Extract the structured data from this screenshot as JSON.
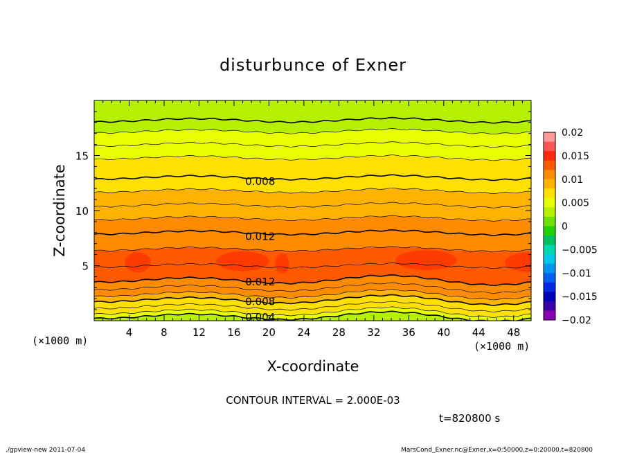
{
  "chart_data": {
    "type": "heatmap",
    "title": "disturbunce of Exner",
    "xlabel": "X-coordinate",
    "ylabel": "Z-coordinate",
    "x_unit": "(×1000 m)",
    "x_unit_right": "(×1000 m)",
    "xlim": [
      0,
      50
    ],
    "ylim": [
      0,
      20
    ],
    "x_ticks": [
      4,
      8,
      12,
      16,
      20,
      24,
      28,
      32,
      36,
      40,
      44,
      48
    ],
    "y_ticks": [
      5,
      10,
      15
    ],
    "contour_interval_label": "CONTOUR INTERVAL = 2.000E-03",
    "time_label": "t=820800 s",
    "contour_labels": [
      {
        "text": "0.008",
        "x": 19,
        "z": 12.8
      },
      {
        "text": "0.012",
        "x": 19,
        "z": 7.8
      },
      {
        "text": "0.012",
        "x": 19,
        "z": 3.8
      },
      {
        "text": "0.008",
        "x": 19,
        "z": 2.0
      },
      {
        "text": "0.004",
        "x": 19,
        "z": 0.6
      }
    ],
    "levels": [
      {
        "z": 19.0,
        "value": 0.004
      },
      {
        "z": 18.2,
        "value": 0.004
      },
      {
        "z": 17.2,
        "value": 0.005
      },
      {
        "z": 16.0,
        "value": 0.006
      },
      {
        "z": 14.8,
        "value": 0.007
      },
      {
        "z": 13.0,
        "value": 0.008
      },
      {
        "z": 11.8,
        "value": 0.009
      },
      {
        "z": 10.5,
        "value": 0.01
      },
      {
        "z": 9.3,
        "value": 0.011
      },
      {
        "z": 8.0,
        "value": 0.012
      },
      {
        "z": 6.5,
        "value": 0.013
      },
      {
        "z": 5.0,
        "value": 0.0135
      },
      {
        "z": 3.7,
        "value": 0.012
      },
      {
        "z": 3.0,
        "value": 0.011
      },
      {
        "z": 2.4,
        "value": 0.01
      },
      {
        "z": 1.9,
        "value": 0.008
      },
      {
        "z": 1.3,
        "value": 0.007
      },
      {
        "z": 0.8,
        "value": 0.005
      },
      {
        "z": 0.4,
        "value": 0.004
      },
      {
        "z": 0.0,
        "value": 0.003
      }
    ],
    "colorbar": {
      "ticks": [
        "0.02",
        "0.015",
        "0.01",
        "0.005",
        "0",
        "−0.005",
        "−0.01",
        "−0.015",
        "−0.02"
      ],
      "colors": [
        "#ff9a9a",
        "#ff5555",
        "#ff2a10",
        "#ff5a00",
        "#ff8c00",
        "#ffb300",
        "#ffe000",
        "#e8ff00",
        "#b4f000",
        "#6ee000",
        "#22d200",
        "#00c060",
        "#00d8b0",
        "#00c8e8",
        "#0096f0",
        "#0060f0",
        "#0028e0",
        "#0000b8",
        "#3a00a8",
        "#8a00b0"
      ]
    }
  },
  "footer": {
    "left": "./gpview-new   2011-07-04",
    "right": "MarsCond_Exner.nc@Exner,x=0:50000,z=0:20000,t=820800"
  }
}
